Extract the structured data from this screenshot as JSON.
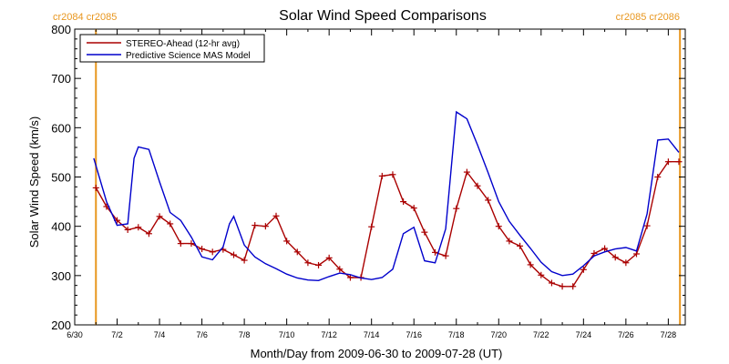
{
  "chart_data": {
    "type": "line",
    "title": "Solar Wind Speed Comparisons",
    "xlabel": "Month/Day from 2009-06-30 to 2009-07-28 (UT)",
    "ylabel": "Solar Wind Speed (km/s)",
    "xlim": [
      0,
      28.8
    ],
    "ylim": [
      200,
      800
    ],
    "yticks": [
      200,
      300,
      400,
      500,
      600,
      700,
      800
    ],
    "xticks": [
      {
        "day": 0,
        "label": "6/30"
      },
      {
        "day": 2,
        "label": "7/2"
      },
      {
        "day": 4,
        "label": "7/4"
      },
      {
        "day": 6,
        "label": "7/6"
      },
      {
        "day": 8,
        "label": "7/8"
      },
      {
        "day": 10,
        "label": "7/10"
      },
      {
        "day": 12,
        "label": "7/12"
      },
      {
        "day": 14,
        "label": "7/14"
      },
      {
        "day": 16,
        "label": "7/16"
      },
      {
        "day": 18,
        "label": "7/18"
      },
      {
        "day": 20,
        "label": "7/20"
      },
      {
        "day": 22,
        "label": "7/22"
      },
      {
        "day": 24,
        "label": "7/24"
      },
      {
        "day": 26,
        "label": "7/26"
      },
      {
        "day": 28,
        "label": "7/28"
      }
    ],
    "vlines": [
      {
        "day": 1.0,
        "label": "cr2084 cr2085",
        "color": "#e8961e"
      },
      {
        "day": 28.55,
        "label": "cr2085 cr2086",
        "color": "#e8961e"
      }
    ],
    "legend_position": "top-left",
    "series": [
      {
        "name": "STEREO-Ahead (12-hr avg)",
        "color": "#aa0000",
        "marker": "plus",
        "x": [
          1.0,
          1.5,
          2.0,
          2.5,
          3.0,
          3.5,
          4.0,
          4.5,
          5.0,
          5.5,
          6.0,
          6.5,
          7.0,
          7.5,
          8.0,
          8.5,
          9.0,
          9.5,
          10.0,
          10.5,
          11.0,
          11.5,
          12.0,
          12.5,
          13.0,
          13.5,
          14.0,
          14.5,
          15.0,
          15.5,
          16.0,
          16.5,
          17.0,
          17.5,
          18.0,
          18.5,
          19.0,
          19.5,
          20.0,
          20.5,
          21.0,
          21.5,
          22.0,
          22.5,
          23.0,
          23.5,
          24.0,
          24.5,
          25.0,
          25.5,
          26.0,
          26.5,
          27.0,
          27.5,
          28.0,
          28.5
        ],
        "values": [
          478,
          440,
          412,
          393,
          398,
          385,
          420,
          405,
          365,
          365,
          354,
          348,
          353,
          342,
          331,
          402,
          400,
          421,
          370,
          348,
          326,
          321,
          336,
          313,
          296,
          296,
          399,
          502,
          505,
          450,
          437,
          388,
          347,
          340,
          436,
          510,
          482,
          453,
          400,
          370,
          360,
          322,
          301,
          285,
          278,
          278,
          312,
          345,
          355,
          337,
          326,
          344,
          401,
          500,
          531,
          531
        ]
      },
      {
        "name": "Predictive Science MAS Model",
        "color": "#0000cc",
        "marker": "none",
        "x": [
          0.9,
          1.5,
          2.0,
          2.5,
          2.8,
          3.0,
          3.5,
          4.0,
          4.5,
          5.0,
          5.5,
          6.0,
          6.5,
          7.0,
          7.3,
          7.5,
          8.0,
          8.5,
          9.0,
          9.5,
          10.0,
          10.5,
          11.0,
          11.5,
          12.0,
          12.5,
          13.0,
          13.5,
          14.0,
          14.5,
          15.0,
          15.5,
          16.0,
          16.5,
          17.0,
          17.5,
          18.0,
          18.5,
          19.0,
          19.5,
          20.0,
          20.5,
          21.0,
          21.5,
          22.0,
          22.5,
          23.0,
          23.5,
          24.0,
          24.5,
          25.0,
          25.5,
          26.0,
          26.5,
          27.0,
          27.5,
          28.0,
          28.5
        ],
        "values": [
          538,
          450,
          402,
          405,
          538,
          561,
          556,
          490,
          428,
          412,
          378,
          338,
          332,
          358,
          405,
          420,
          362,
          338,
          324,
          314,
          303,
          295,
          291,
          290,
          298,
          305,
          302,
          295,
          292,
          296,
          313,
          385,
          398,
          330,
          326,
          395,
          632,
          618,
          565,
          509,
          450,
          410,
          382,
          355,
          327,
          308,
          300,
          303,
          320,
          340,
          348,
          354,
          357,
          350,
          425,
          575,
          577,
          550
        ]
      }
    ]
  }
}
